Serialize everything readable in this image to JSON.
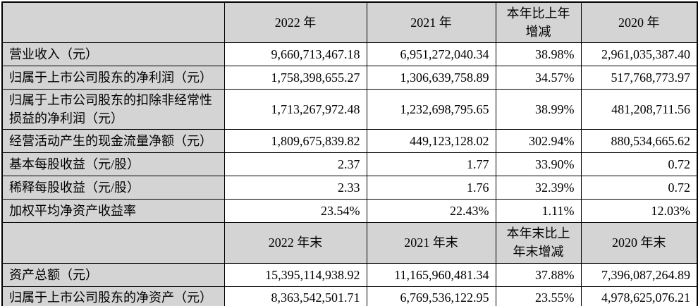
{
  "table": {
    "description": "主要会计数据和财务指标表",
    "colors": {
      "header_bg": "#d4d4d4",
      "label_bg": "#d4d4d4",
      "cell_bg": "#ffffff",
      "border": "#000000",
      "text": "#000000"
    },
    "period_headers": {
      "annual": [
        "2022 年",
        "2021 年",
        "本年比上年\n增减",
        "2020 年"
      ],
      "year_end": [
        "2022 年末",
        "2021 年末",
        "本年末比上\n年末增减",
        "2020 年末"
      ]
    },
    "rows": [
      {
        "type": "header",
        "cells": [
          "",
          "2022 年",
          "2021 年",
          "本年比上年\n增减",
          "2020 年"
        ]
      },
      {
        "type": "data",
        "cells": [
          "营业收入（元）",
          "9,660,713,467.18",
          "6,951,272,040.34",
          "38.98%",
          "2,961,035,387.40"
        ]
      },
      {
        "type": "data",
        "cells": [
          "归属于上市公司股东的净利润（元）",
          "1,758,398,655.27",
          "1,306,639,758.89",
          "34.57%",
          "517,768,773.97"
        ]
      },
      {
        "type": "data",
        "cells": [
          "归属于上市公司股东的扣除非经常性损益的净利润（元）",
          "1,713,267,972.48",
          "1,232,698,795.65",
          "38.99%",
          "481,208,711.56"
        ]
      },
      {
        "type": "data",
        "cells": [
          "经营活动产生的现金流量净额（元）",
          "1,809,675,839.82",
          "449,123,128.02",
          "302.94%",
          "880,534,665.62"
        ]
      },
      {
        "type": "data",
        "cells": [
          "基本每股收益（元/股）",
          "2.37",
          "1.77",
          "33.90%",
          "0.72"
        ]
      },
      {
        "type": "data",
        "cells": [
          "稀释每股收益（元/股）",
          "2.33",
          "1.76",
          "32.39%",
          "0.72"
        ]
      },
      {
        "type": "data",
        "cells": [
          "加权平均净资产收益率",
          "23.54%",
          "22.43%",
          "1.11%",
          "12.03%"
        ]
      },
      {
        "type": "header",
        "cells": [
          "",
          "2022 年末",
          "2021 年末",
          "本年末比上\n年末增减",
          "2020 年末"
        ]
      },
      {
        "type": "data",
        "cells": [
          "资产总额（元）",
          "15,395,114,938.92",
          "11,165,960,481.34",
          "37.88%",
          "7,396,087,264.89"
        ]
      },
      {
        "type": "data",
        "cells": [
          "归属于上市公司股东的净资产（元）",
          "8,363,542,501.71",
          "6,769,536,122.95",
          "23.55%",
          "4,978,625,076.21"
        ]
      }
    ]
  }
}
